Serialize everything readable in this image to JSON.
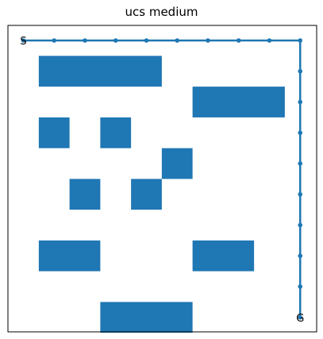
{
  "title": "ucs medium",
  "start_label": "S",
  "goal_label": "G",
  "colors": {
    "obstacle": "#1f77b4",
    "path": "#1f77b4",
    "frame": "#000000",
    "text": "#000000"
  },
  "grid": {
    "cols": 10,
    "rows": 10
  },
  "obstacles": [
    {
      "col": 1,
      "row": 1,
      "w": 4,
      "h": 1
    },
    {
      "col": 6,
      "row": 2,
      "w": 3,
      "h": 1
    },
    {
      "col": 1,
      "row": 3,
      "w": 1,
      "h": 1
    },
    {
      "col": 3,
      "row": 3,
      "w": 1,
      "h": 1
    },
    {
      "col": 5,
      "row": 4,
      "w": 1,
      "h": 1
    },
    {
      "col": 2,
      "row": 5,
      "w": 1,
      "h": 1
    },
    {
      "col": 4,
      "row": 5,
      "w": 1,
      "h": 1
    },
    {
      "col": 1,
      "row": 7,
      "w": 2,
      "h": 1
    },
    {
      "col": 6,
      "row": 7,
      "w": 2,
      "h": 1
    },
    {
      "col": 3,
      "row": 9,
      "w": 3,
      "h": 1
    }
  ],
  "start": {
    "col": 0,
    "row": 0
  },
  "goal": {
    "col": 9,
    "row": 9
  },
  "path": [
    [
      0,
      0
    ],
    [
      1,
      0
    ],
    [
      2,
      0
    ],
    [
      3,
      0
    ],
    [
      4,
      0
    ],
    [
      5,
      0
    ],
    [
      6,
      0
    ],
    [
      7,
      0
    ],
    [
      8,
      0
    ],
    [
      9,
      0
    ],
    [
      9,
      1
    ],
    [
      9,
      2
    ],
    [
      9,
      3
    ],
    [
      9,
      4
    ],
    [
      9,
      5
    ],
    [
      9,
      6
    ],
    [
      9,
      7
    ],
    [
      9,
      8
    ],
    [
      9,
      9
    ]
  ]
}
